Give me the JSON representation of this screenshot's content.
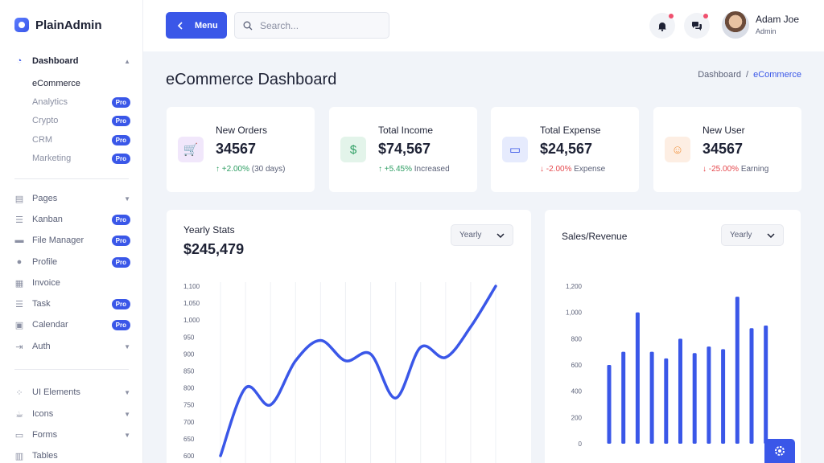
{
  "app": {
    "name": "PlainAdmin"
  },
  "sidebar": {
    "items": [
      {
        "label": "Dashboard",
        "icon": "pie-chart-icon",
        "glyph": "◔",
        "top": 66,
        "chevron": "▲",
        "active": true
      },
      {
        "label": "Pages",
        "icon": "file-icon",
        "glyph": "▤",
        "top": 237,
        "chevron": "▼"
      },
      {
        "label": "Kanban",
        "icon": "kanban-icon",
        "glyph": "☰",
        "top": 263,
        "pro": "Pro"
      },
      {
        "label": "File Manager",
        "icon": "folder-icon",
        "glyph": "▬",
        "top": 289,
        "pro": "Pro"
      },
      {
        "label": "Profile",
        "icon": "user-icon",
        "glyph": "●",
        "top": 316,
        "pro": "Pro"
      },
      {
        "label": "Invoice",
        "icon": "invoice-icon",
        "glyph": "▦",
        "top": 342
      },
      {
        "label": "Task",
        "icon": "task-list-icon",
        "glyph": "☰",
        "top": 368,
        "pro": "Pro"
      },
      {
        "label": "Calendar",
        "icon": "calendar-icon",
        "glyph": "▣",
        "top": 394,
        "pro": "Pro"
      },
      {
        "label": "Auth",
        "icon": "login-icon",
        "glyph": "⇥",
        "top": 421,
        "chevron": "▼"
      },
      {
        "label": "UI Elements",
        "icon": "grid-dots-icon",
        "glyph": "⁘",
        "top": 478,
        "chevron": "▼"
      },
      {
        "label": "Icons",
        "icon": "cup-icon",
        "glyph": "☕",
        "top": 505,
        "chevron": "▼"
      },
      {
        "label": "Forms",
        "icon": "form-icon",
        "glyph": "▭",
        "top": 531,
        "chevron": "▼"
      },
      {
        "label": "Tables",
        "icon": "table-icon",
        "glyph": "▥",
        "top": 557
      }
    ],
    "dashboard_sub": [
      {
        "label": "eCommerce",
        "top": 95,
        "current": true
      },
      {
        "label": "Analytics",
        "top": 118,
        "pro": "Pro"
      },
      {
        "label": "Crypto",
        "top": 141,
        "pro": "Pro"
      },
      {
        "label": "CRM",
        "top": 165,
        "pro": "Pro"
      },
      {
        "label": "Marketing",
        "top": 188,
        "pro": "Pro"
      }
    ]
  },
  "header": {
    "menu_label": "Menu",
    "search_placeholder": "Search...",
    "user_name": "Adam Joe",
    "user_role": "Admin"
  },
  "page": {
    "title": "eCommerce Dashboard",
    "breadcrumb": [
      "Dashboard",
      "/",
      "eCommerce"
    ]
  },
  "stats": [
    {
      "title": "New Orders",
      "value": "34567",
      "trend_dir": "up",
      "trend_value": "+2.00%",
      "trend_note": "(30 days)",
      "icon": "cart-icon",
      "glyph": "🛒",
      "bg": "#f1e7fb",
      "fg": "#9b51e0"
    },
    {
      "title": "Total Income",
      "value": "$74,567",
      "trend_dir": "up",
      "trend_value": "+5.45%",
      "trend_note": "Increased",
      "icon": "dollar-icon",
      "glyph": "$",
      "bg": "#e3f4ea",
      "fg": "#2e9e63"
    },
    {
      "title": "Total Expense",
      "value": "$24,567",
      "trend_dir": "down",
      "trend_value": "-2.00%",
      "trend_note": "Expense",
      "icon": "credit-card-icon",
      "glyph": "▭",
      "bg": "#e6ebfd",
      "fg": "#3a57e8"
    },
    {
      "title": "New User",
      "value": "34567",
      "trend_dir": "down",
      "trend_value": "-25.00%",
      "trend_note": "Earning",
      "icon": "user-icon",
      "glyph": "☺",
      "bg": "#fdeee3",
      "fg": "#f2994a"
    }
  ],
  "yearly_card": {
    "title": "Yearly Stats",
    "value": "$245,479",
    "select": "Yearly"
  },
  "sales_card": {
    "title": "Sales/Revenue",
    "select": "Yearly"
  },
  "chart_data": [
    {
      "type": "line",
      "ylim": [
        600,
        1100
      ],
      "yticks": [
        600,
        650,
        700,
        750,
        800,
        850,
        900,
        950,
        1000,
        1050,
        1100
      ],
      "ytick_labels": [
        "600",
        "650",
        "700",
        "750",
        "800",
        "850",
        "900",
        "950",
        "1,000",
        "1,050",
        "1,100"
      ],
      "values": [
        600,
        800,
        750,
        880,
        940,
        880,
        900,
        770,
        920,
        890,
        980,
        1100
      ],
      "color": "#3a57e8"
    },
    {
      "type": "bar",
      "ylim": [
        0,
        1200
      ],
      "yticks": [
        0,
        200,
        400,
        600,
        800,
        1000,
        1200
      ],
      "ytick_labels": [
        "0",
        "200",
        "400",
        "600",
        "800",
        "1,000",
        "1,200"
      ],
      "values": [
        600,
        700,
        1000,
        700,
        650,
        800,
        690,
        740,
        720,
        1120,
        880,
        900
      ],
      "color": "#3a57e8"
    }
  ]
}
